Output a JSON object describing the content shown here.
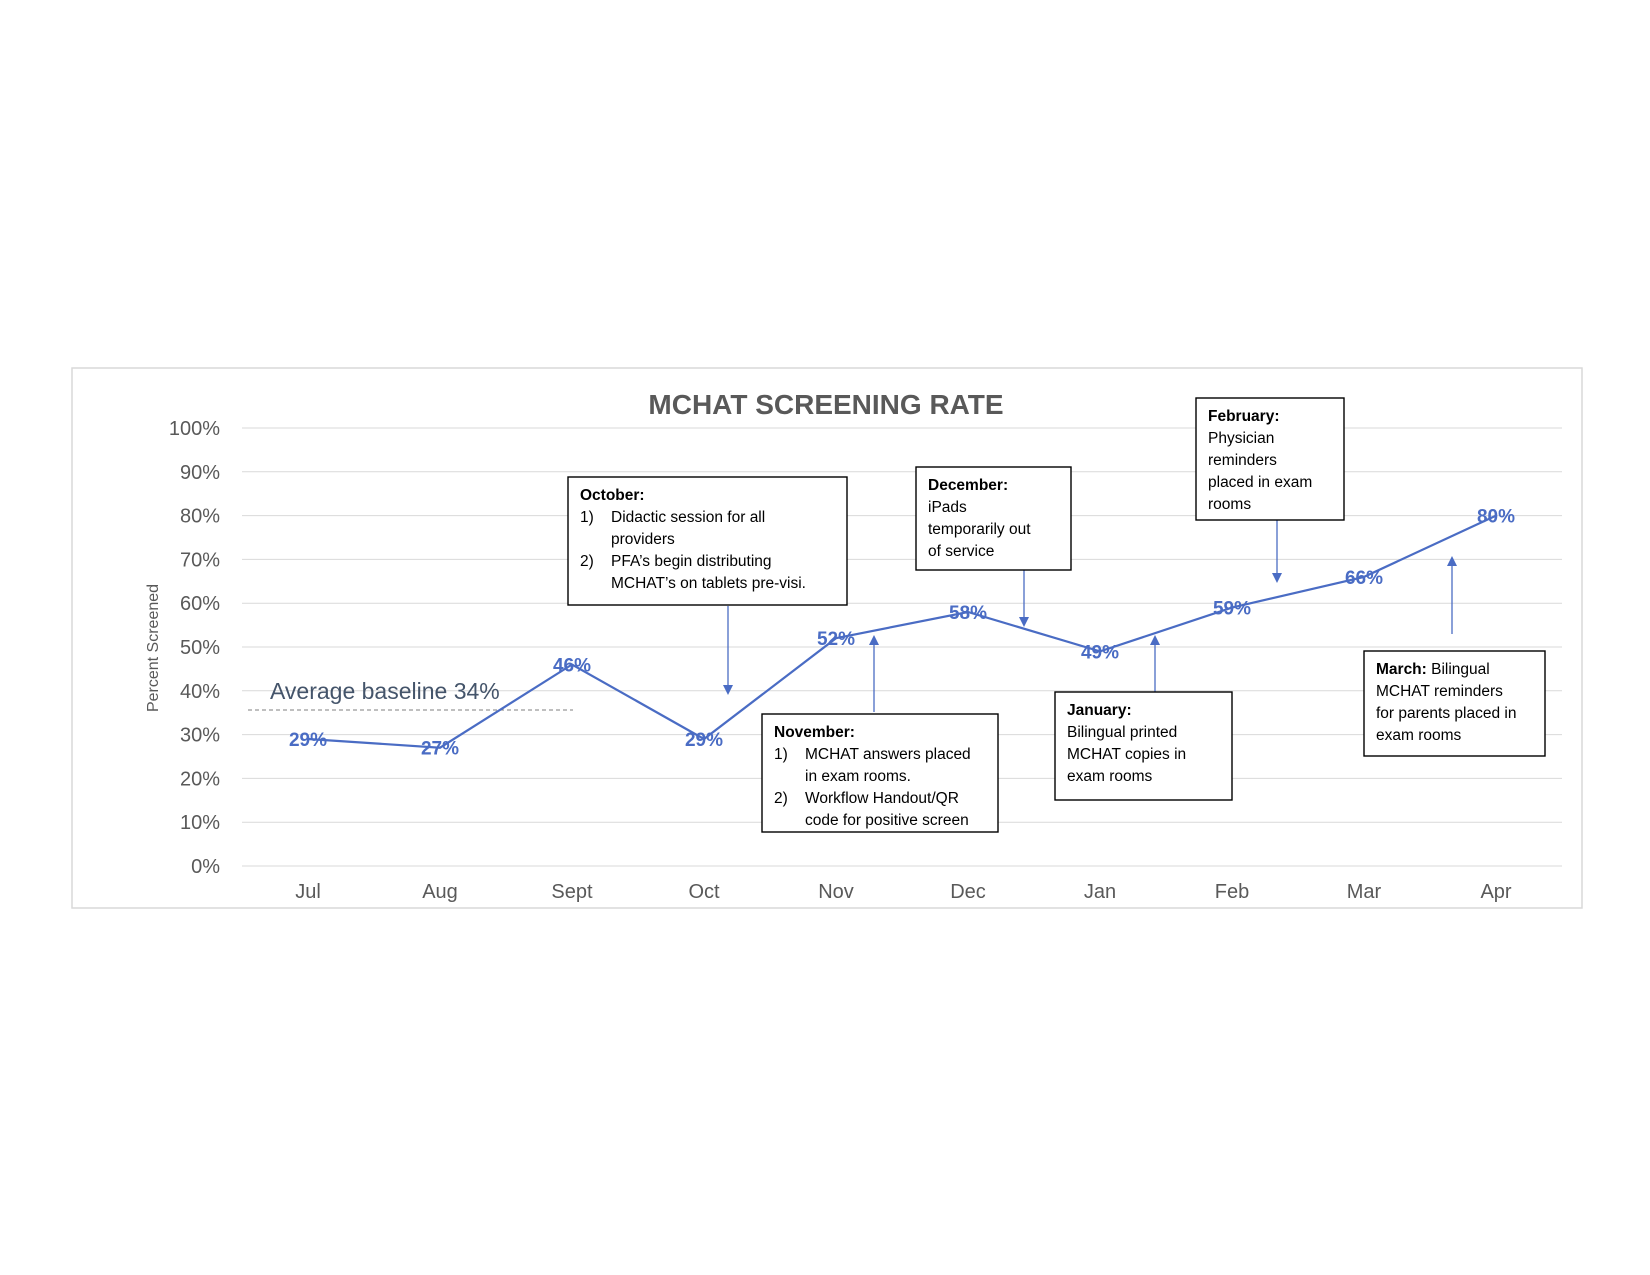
{
  "chart_data": {
    "type": "line",
    "title": "MCHAT SCREENING RATE",
    "ylabel": "Percent Screened",
    "xlabel": "",
    "categories": [
      "Jul",
      "Aug",
      "Sept",
      "Oct",
      "Nov",
      "Dec",
      "Jan",
      "Feb",
      "Mar",
      "Apr"
    ],
    "values": [
      29,
      27,
      46,
      29,
      52,
      58,
      49,
      59,
      66,
      80
    ],
    "value_labels": [
      "29%",
      "27%",
      "46%",
      "29%",
      "52%",
      "58%",
      "49%",
      "59%",
      "66%",
      "80%"
    ],
    "ylim": [
      0,
      100
    ],
    "yticks": [
      "0%",
      "10%",
      "20%",
      "30%",
      "40%",
      "50%",
      "60%",
      "70%",
      "80%",
      "90%",
      "100%"
    ],
    "grid": true,
    "line_color": "#4a6cc4",
    "baseline": {
      "label": "Average baseline 34%",
      "value": 34
    },
    "annotations": [
      {
        "heading": "October:",
        "items": [
          {
            "num": "1)",
            "lines": [
              "Didactic session for all",
              "providers"
            ]
          },
          {
            "num": "2)",
            "lines": [
              "PFA’s begin distributing",
              "MCHAT’s on tablets pre-visi."
            ]
          }
        ]
      },
      {
        "heading": "November:",
        "items": [
          {
            "num": "1)",
            "lines": [
              "MCHAT answers placed",
              "in exam rooms."
            ]
          },
          {
            "num": "2)",
            "lines": [
              "Workflow Handout/QR",
              "code for positive screen"
            ]
          }
        ]
      },
      {
        "heading": "December:",
        "lines": [
          "iPads",
          "temporarily out",
          "of service"
        ]
      },
      {
        "heading": "January:",
        "lines": [
          "Bilingual printed",
          "MCHAT copies  in",
          "exam rooms"
        ]
      },
      {
        "heading": "February:",
        "lines": [
          "Physician",
          "reminders",
          "placed in exam",
          "rooms"
        ]
      },
      {
        "heading": "March:",
        "heading_tail": " Bilingual",
        "lines": [
          "MCHAT reminders",
          "for parents placed in",
          "exam rooms"
        ]
      }
    ]
  }
}
